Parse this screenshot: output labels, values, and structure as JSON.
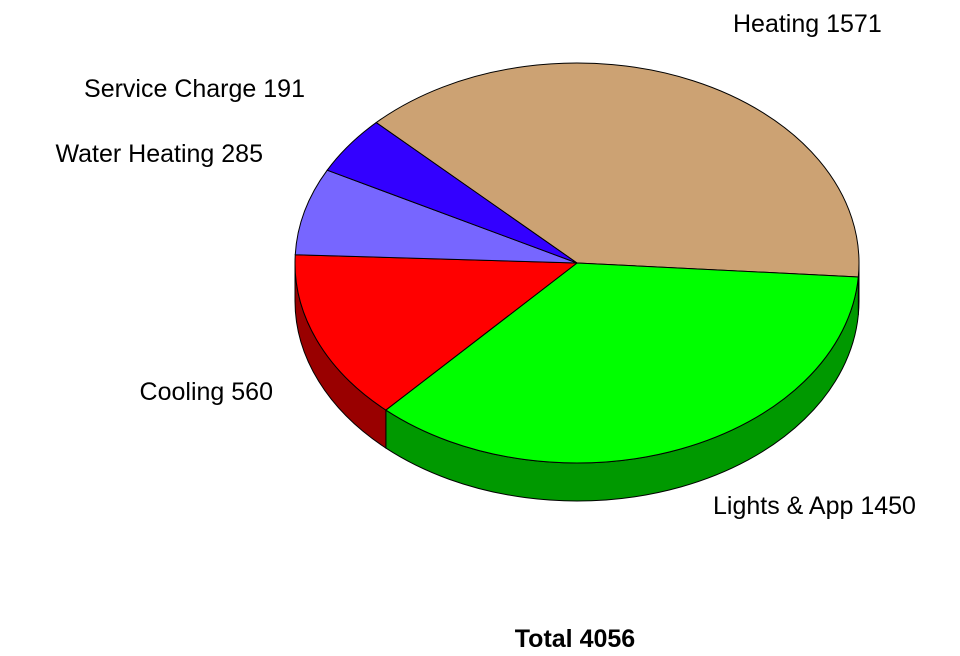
{
  "chart_data": {
    "type": "pie3d",
    "categories": [
      "Heating",
      "Lights & App",
      "Cooling",
      "Water Heating",
      "Service Charge"
    ],
    "values": [
      1571,
      1450,
      560,
      285,
      191
    ],
    "colors": [
      "#cca273",
      "#00ff00",
      "#ff0000",
      "#7766ff",
      "#3300ff"
    ],
    "side_colors": [
      "#8a6a45",
      "#009900",
      "#990000",
      "#4433aa",
      "#2200aa"
    ],
    "total_label": "Total",
    "total": 4056
  }
}
